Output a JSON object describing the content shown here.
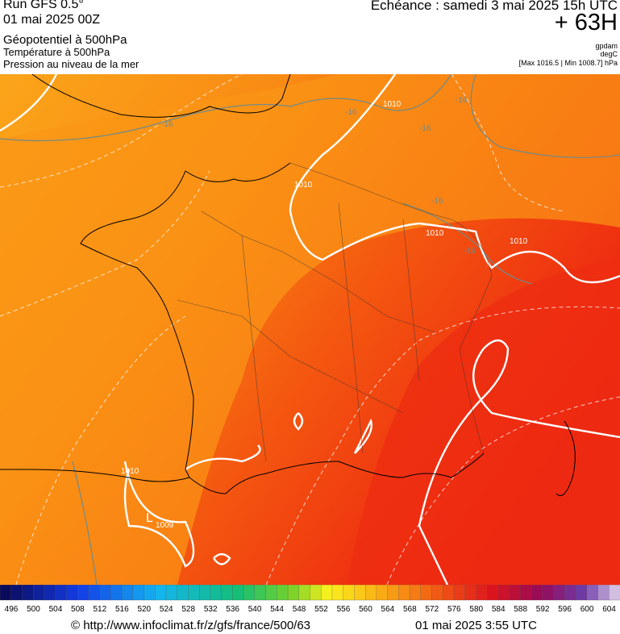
{
  "header": {
    "run": "Run GFS 0.5°",
    "date": "01 mai 2025 00Z",
    "field": "Géopotentiel à 500hPa",
    "temperature": "Température à 500hPa",
    "pressure": "Pression au niveau de la mer",
    "forecast": "Echéance : samedi 3 mai 2025 15h UTC",
    "lead": "+ 63H",
    "units": [
      "gpdam",
      "degC"
    ],
    "range": "[Max 1016.5 | Min 1008.7] hPa"
  },
  "map": {
    "labels": [
      "1010",
      "1010",
      "1010",
      "1010",
      "1010",
      "1009",
      "L",
      "-16",
      "-16",
      "-16",
      "-16",
      "-16",
      "-16"
    ]
  },
  "colorbar": {
    "labels": [
      496,
      500,
      504,
      508,
      512,
      516,
      520,
      524,
      528,
      532,
      536,
      540,
      544,
      548,
      552,
      556,
      560,
      564,
      568,
      572,
      576,
      580,
      584,
      588,
      592,
      596,
      600,
      604
    ]
  },
  "footer": {
    "source": "© http://www.infoclimat.fr/z/gfs/france/500/63",
    "issued": "01 mai 2025  3:55 UTC"
  }
}
